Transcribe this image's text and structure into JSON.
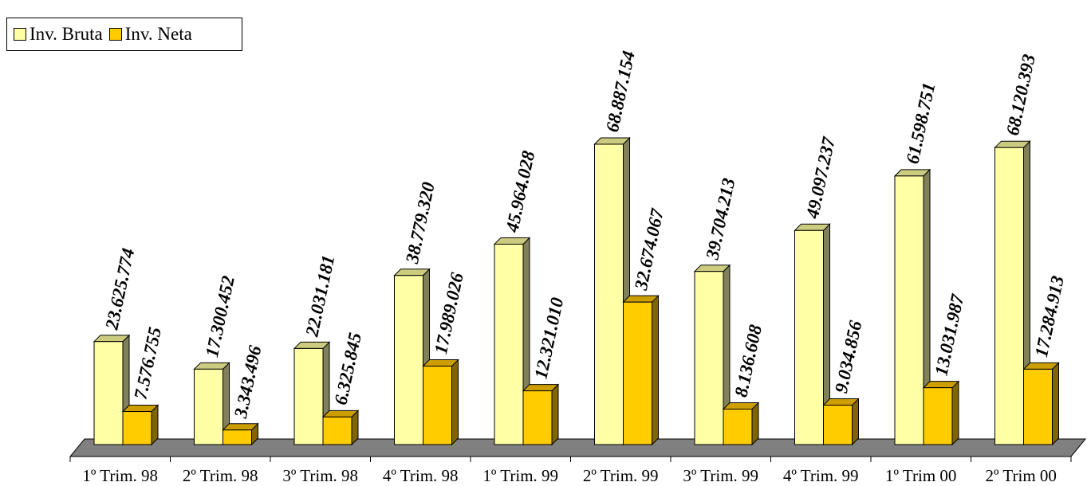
{
  "chart_data": {
    "type": "bar",
    "categories": [
      "1º Trim. 98",
      "2º Trim. 98",
      "3º Trim. 98",
      "4º Trim. 98",
      "1º Trim. 99",
      "2º Trim. 99",
      "3º Trim. 99",
      "4º Trim. 99",
      "1º Trim 00",
      "2º Trim 00"
    ],
    "series": [
      {
        "name": "Inv. Bruta",
        "values": [
          23625774,
          17300452,
          22031181,
          38779320,
          45964028,
          68887154,
          39704213,
          49097237,
          61598751,
          68120393
        ],
        "labels": [
          "23.625.774",
          "17.300.452",
          "22.031.181",
          "38.779.320",
          "45.964.028",
          "68.887.154",
          "39.704.213",
          "49.097.237",
          "61.598.751",
          "68.120.393"
        ],
        "color": "#FFFFA6",
        "top_color": "#CCCC80",
        "side_color": "#80805A"
      },
      {
        "name": "Inv. Neta",
        "values": [
          7576755,
          3343496,
          6325845,
          17989026,
          12321010,
          32674067,
          8136608,
          9034856,
          13031987,
          17284913
        ],
        "labels": [
          "7.576.755",
          "3.343.496",
          "6.325.845",
          "17.989.026",
          "12.321.010",
          "32.674.067",
          "8.136.608",
          "9.034.856",
          "13.031.987",
          "17.284.913"
        ],
        "color": "#FFCC00",
        "top_color": "#CC9E00",
        "side_color": "#806600"
      }
    ],
    "legend_position": "top-left",
    "floor_color": "#808080",
    "grid": false,
    "ylim": [
      0,
      75000000
    ]
  }
}
